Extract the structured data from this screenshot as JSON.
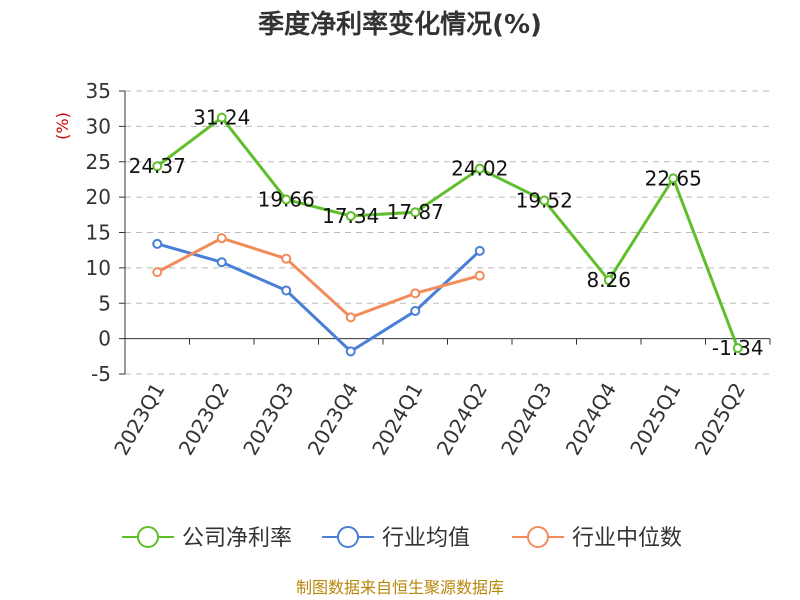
{
  "chart_data": {
    "type": "line",
    "title": "季度净利率变化情况(%)",
    "ylabel": "(%)",
    "ylim": [
      -5,
      35
    ],
    "yticks": [
      35,
      30,
      25,
      20,
      15,
      10,
      5,
      0,
      -5
    ],
    "ytick_labels": [
      "35",
      "30",
      "25",
      "20",
      "15",
      "10",
      "5",
      "0",
      "-5"
    ],
    "categories": [
      "2023Q1",
      "2023Q2",
      "2023Q3",
      "2023Q4",
      "2024Q1",
      "2024Q2",
      "2024Q3",
      "2024Q4",
      "2025Q1",
      "2025Q2"
    ],
    "grid": true,
    "legend_position": "bottom",
    "series": [
      {
        "name": "公司净利率",
        "color": "#5fbf2a",
        "values": [
          24.37,
          31.24,
          19.66,
          17.34,
          17.87,
          24.02,
          19.52,
          8.26,
          22.65,
          -1.34
        ],
        "labels": [
          "24.37",
          "31.24",
          "19.66",
          "17.34",
          "17.87",
          "24.02",
          "19.52",
          "8.26",
          "22.65",
          "-1.34"
        ]
      },
      {
        "name": "行业均值",
        "color": "#4a7fd6",
        "values": [
          13.4,
          10.8,
          6.8,
          -1.8,
          3.9,
          12.4,
          null,
          null,
          null,
          null
        ]
      },
      {
        "name": "行业中位数",
        "color": "#f28c5a",
        "values": [
          9.4,
          14.2,
          11.3,
          3.0,
          6.4,
          8.9,
          null,
          null,
          null,
          null
        ]
      }
    ]
  },
  "source": "制图数据来自恒生聚源数据库"
}
